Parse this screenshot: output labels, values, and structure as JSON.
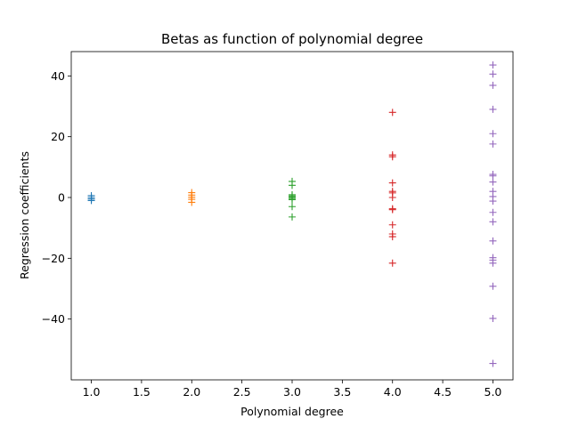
{
  "chart_data": {
    "type": "scatter",
    "title": "Betas as function of polynomial degree",
    "xlabel": "Polynomial degree",
    "ylabel": "Regression coefficients",
    "xlim": [
      0.8,
      5.2
    ],
    "ylim": [
      -60,
      48
    ],
    "xticks": [
      1.0,
      1.5,
      2.0,
      2.5,
      3.0,
      3.5,
      4.0,
      4.5,
      5.0
    ],
    "xtick_labels": [
      "1.0",
      "1.5",
      "2.0",
      "2.5",
      "3.0",
      "3.5",
      "4.0",
      "4.5",
      "5.0"
    ],
    "yticks": [
      -40,
      -20,
      0,
      20,
      40
    ],
    "ytick_labels": [
      "−40",
      "−20",
      "0",
      "20",
      "40"
    ],
    "grid": false,
    "marker": "+",
    "series": [
      {
        "color": "#1f77b4",
        "x": 1,
        "values": [
          0.6,
          0.0,
          -0.5,
          -1.0
        ]
      },
      {
        "color": "#ff7f0e",
        "x": 2,
        "values": [
          1.6,
          0.8,
          0.1,
          -0.6,
          -1.6
        ]
      },
      {
        "color": "#2ca02c",
        "x": 3,
        "values": [
          5.3,
          4.0,
          0.9,
          0.5,
          0.1,
          -0.3,
          -0.7,
          -3.0,
          -6.4
        ]
      },
      {
        "color": "#d62728",
        "x": 4,
        "values": [
          28.0,
          14.0,
          13.4,
          4.8,
          2.0,
          1.5,
          0.0,
          -3.7,
          -4.0,
          -9.0,
          -12.0,
          -12.9,
          -21.6
        ]
      },
      {
        "color": "#9467bd",
        "x": 5,
        "values": [
          43.6,
          40.6,
          36.9,
          29.0,
          21.0,
          17.6,
          7.6,
          7.1,
          5.1,
          2.0,
          0.3,
          -1.2,
          -4.9,
          -8.0,
          -14.3,
          -19.8,
          -20.6,
          -21.6,
          -29.2,
          -39.8,
          -54.6
        ]
      }
    ]
  }
}
